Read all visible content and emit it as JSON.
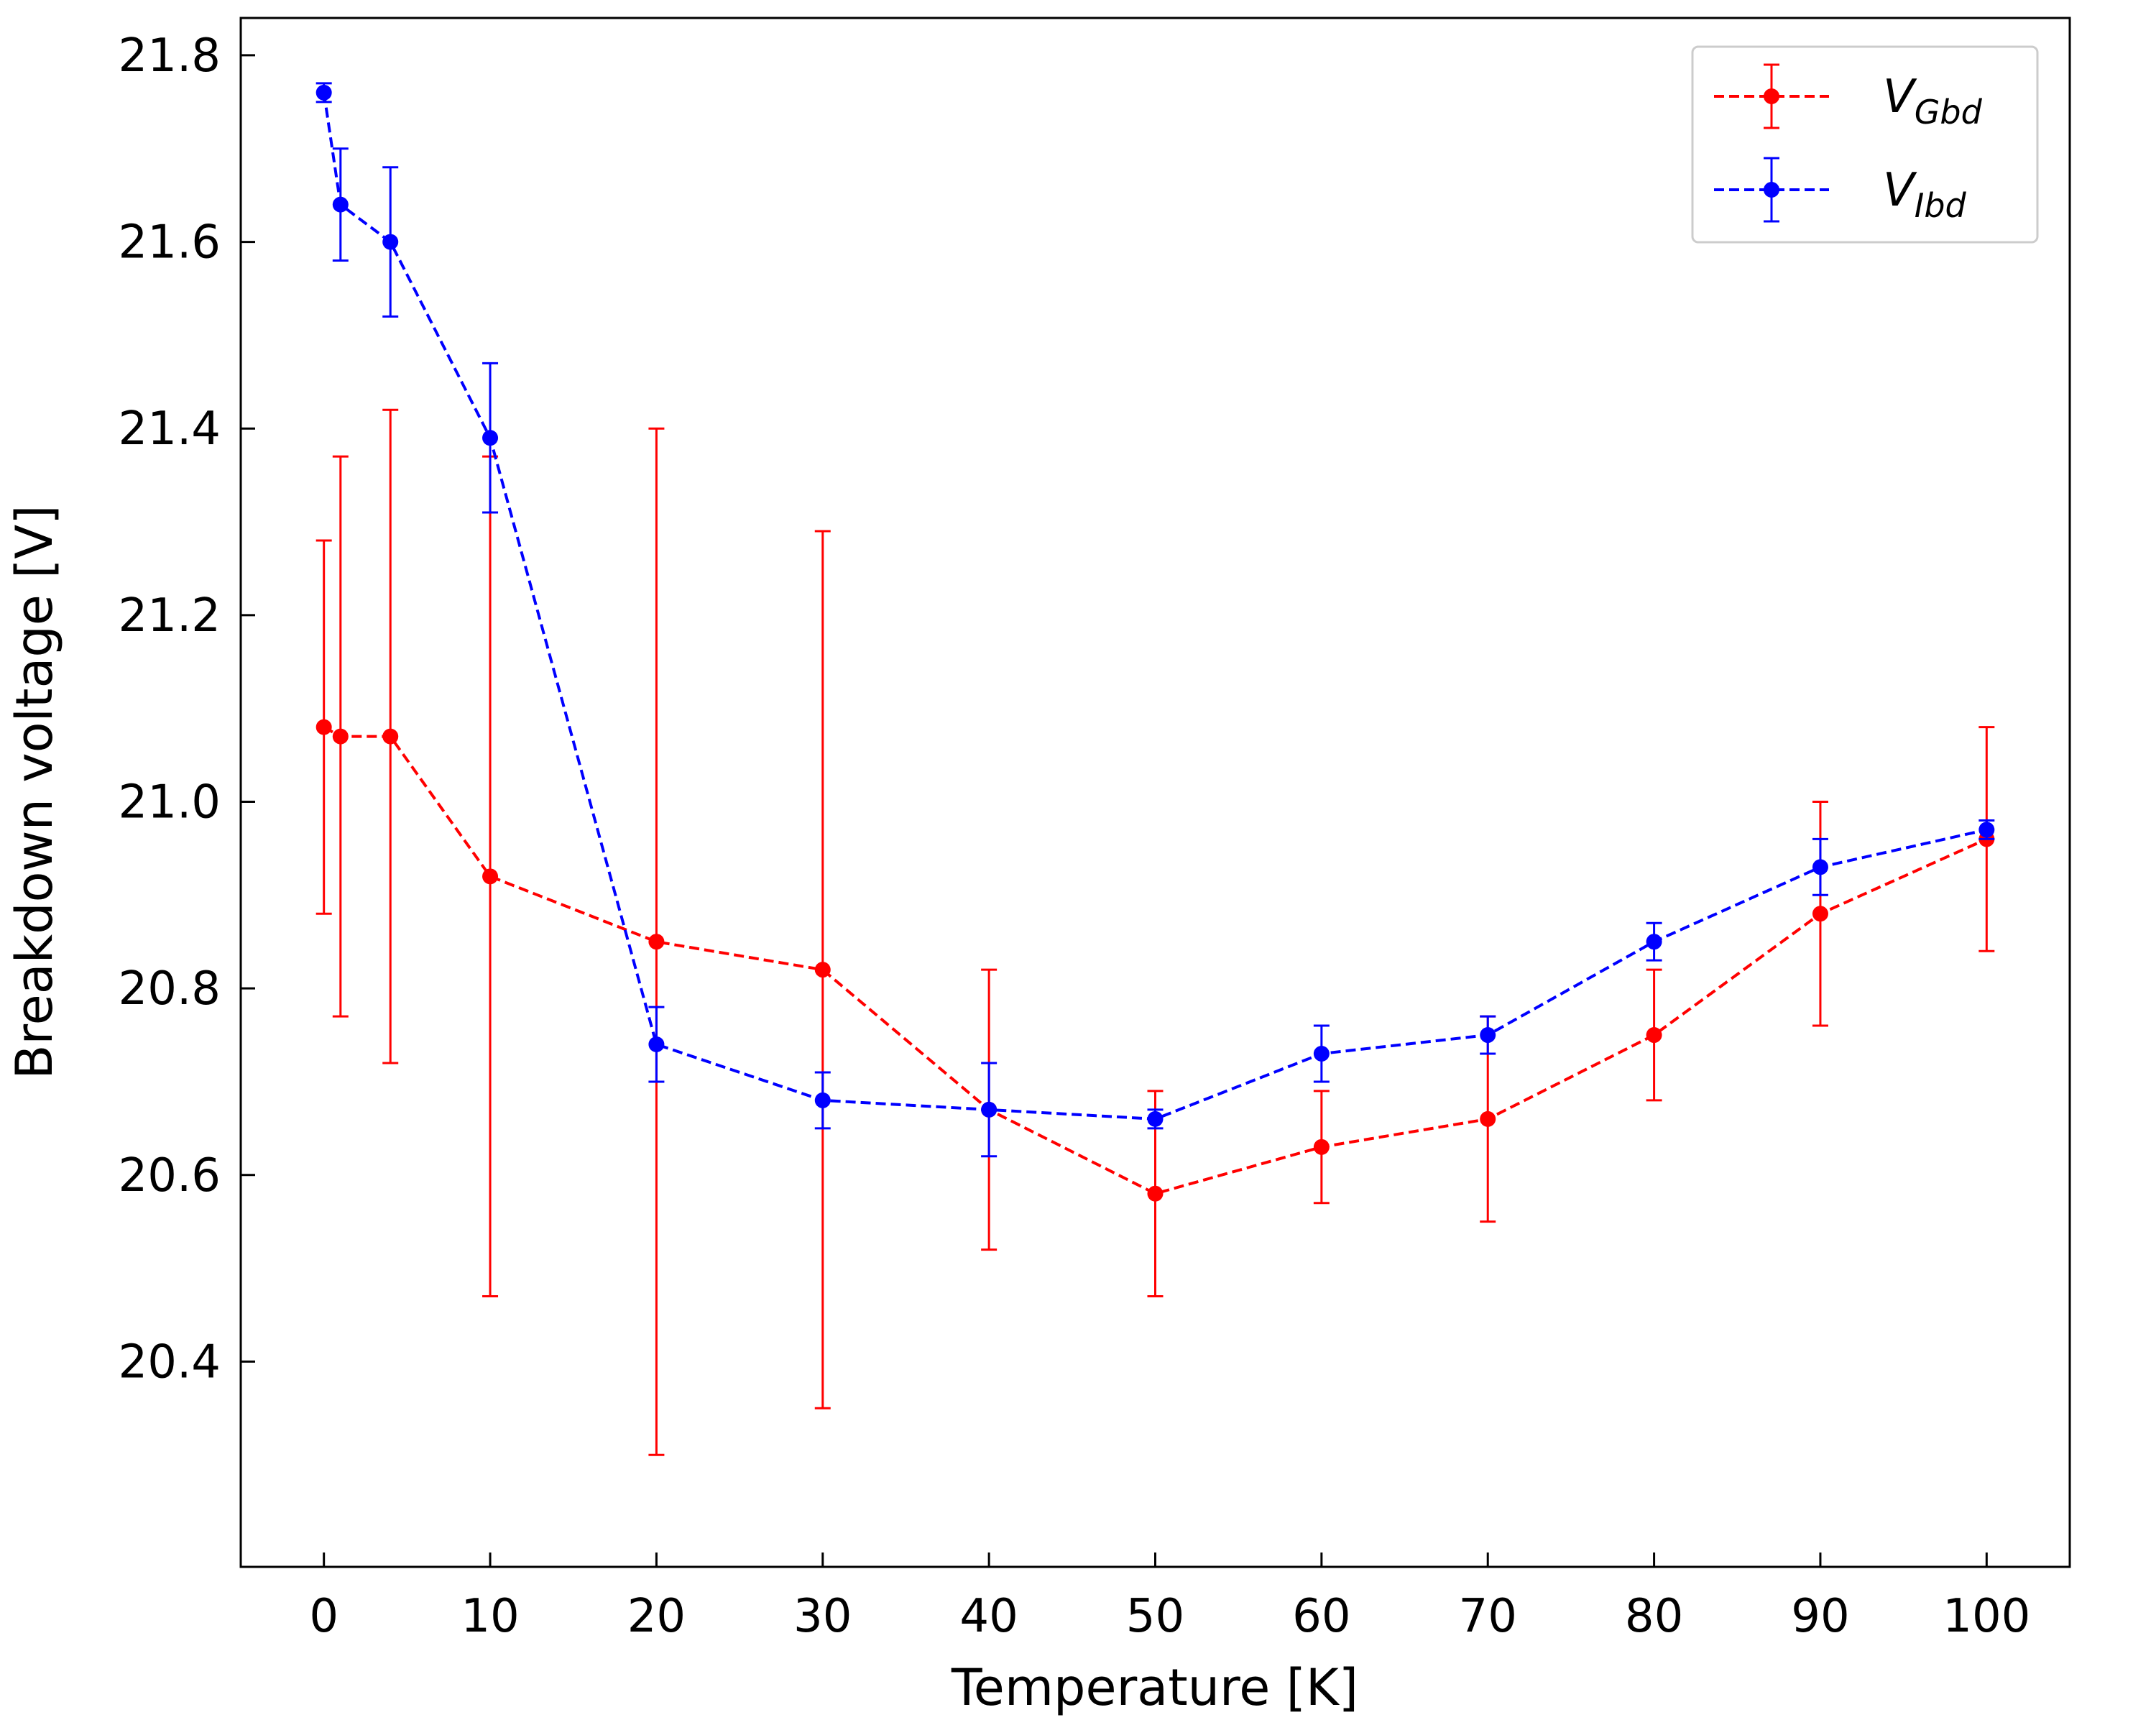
{
  "chart_data": {
    "type": "line",
    "xlabel": "Temperature [K]",
    "ylabel": "Breakdown voltage [V]",
    "xlim": [
      -5,
      105
    ],
    "ylim": [
      20.18,
      21.84
    ],
    "x_ticks": [
      0,
      10,
      20,
      30,
      40,
      50,
      60,
      70,
      80,
      90,
      100
    ],
    "x_tick_labels": [
      "0",
      "10",
      "20",
      "30",
      "40",
      "50",
      "60",
      "70",
      "80",
      "90",
      "100"
    ],
    "y_ticks": [
      20.4,
      20.6,
      20.8,
      21.0,
      21.2,
      21.4,
      21.6,
      21.8
    ],
    "y_tick_labels": [
      "20.4",
      "20.6",
      "20.8",
      "21.0",
      "21.2",
      "21.4",
      "21.6",
      "21.8"
    ],
    "grid": false,
    "legend_position": "top-right",
    "series": [
      {
        "name": "V_Gbd",
        "legend_main": "V",
        "legend_sub": "Gbd",
        "color": "#ff0000",
        "x": [
          0,
          1,
          4,
          10,
          20,
          30,
          40,
          50,
          60,
          70,
          80,
          90,
          100
        ],
        "y": [
          21.08,
          21.07,
          21.07,
          20.92,
          20.85,
          20.82,
          20.67,
          20.58,
          20.63,
          20.66,
          20.75,
          20.88,
          20.96
        ],
        "err": [
          0.2,
          0.3,
          0.35,
          0.45,
          0.55,
          0.47,
          0.15,
          0.11,
          0.06,
          0.11,
          0.07,
          0.12,
          0.12
        ]
      },
      {
        "name": "V_Ibd",
        "legend_main": "V",
        "legend_sub": "Ibd",
        "color": "#0000ff",
        "x": [
          0,
          1,
          4,
          10,
          20,
          30,
          40,
          50,
          60,
          70,
          80,
          90,
          100
        ],
        "y": [
          21.76,
          21.64,
          21.6,
          21.39,
          20.74,
          20.68,
          20.67,
          20.66,
          20.73,
          20.75,
          20.85,
          20.93,
          20.97
        ],
        "err": [
          0.01,
          0.06,
          0.08,
          0.08,
          0.04,
          0.03,
          0.05,
          0.01,
          0.03,
          0.02,
          0.02,
          0.03,
          0.01
        ]
      }
    ]
  }
}
